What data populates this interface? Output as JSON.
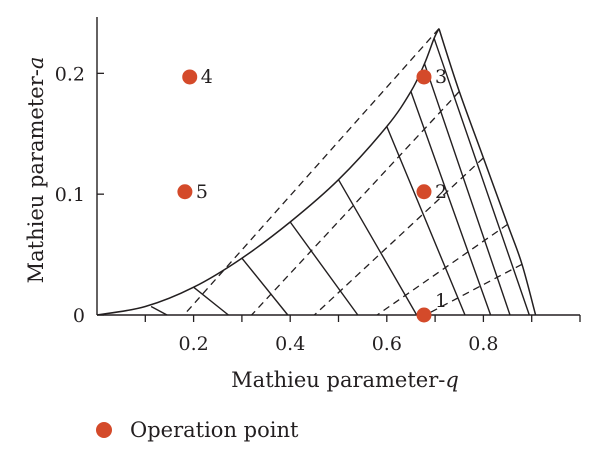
{
  "chart_data": {
    "type": "scatter",
    "title": "",
    "xlabel": "Mathieu parameter-",
    "xlabel_var": "q",
    "ylabel": "Mathieu parameter-",
    "ylabel_var": "a",
    "xlim": [
      0,
      1.0
    ],
    "ylim": [
      0,
      0.24
    ],
    "x_ticks": [
      {
        "value": 0.2,
        "label": "0.2"
      },
      {
        "value": 0.4,
        "label": "0.4"
      },
      {
        "value": 0.6,
        "label": "0.6"
      },
      {
        "value": 0.8,
        "label": "0.8"
      }
    ],
    "x_minor_ticks": [
      0.1,
      0.3,
      0.5,
      0.7,
      0.9,
      1.0
    ],
    "y_ticks": [
      {
        "value": 0,
        "label": "0"
      },
      {
        "value": 0.1,
        "label": "0.1"
      },
      {
        "value": 0.2,
        "label": "0.2"
      }
    ],
    "grid": false,
    "stability_boundary": {
      "color": "#231f20",
      "left_edge": [
        [
          0.0,
          0.0
        ],
        [
          0.1,
          0.007
        ],
        [
          0.2,
          0.023
        ],
        [
          0.3,
          0.047
        ],
        [
          0.4,
          0.077
        ],
        [
          0.5,
          0.112
        ],
        [
          0.6,
          0.156
        ],
        [
          0.65,
          0.185
        ],
        [
          0.678,
          0.208
        ],
        [
          0.698,
          0.229
        ],
        [
          0.708,
          0.237
        ]
      ],
      "right_edge": [
        [
          0.708,
          0.237
        ],
        [
          0.75,
          0.185
        ],
        [
          0.8,
          0.13
        ],
        [
          0.85,
          0.075
        ],
        [
          0.88,
          0.042
        ],
        [
          0.908,
          0.0
        ]
      ]
    },
    "iso_beta_solid": [
      [
        [
          0.112,
          0.007
        ],
        [
          0.145,
          0.0
        ]
      ],
      [
        [
          0.2,
          0.023
        ],
        [
          0.272,
          0.0
        ]
      ],
      [
        [
          0.3,
          0.047
        ],
        [
          0.395,
          0.0
        ]
      ],
      [
        [
          0.4,
          0.077
        ],
        [
          0.54,
          0.0
        ]
      ],
      [
        [
          0.5,
          0.112
        ],
        [
          0.662,
          0.0
        ]
      ],
      [
        [
          0.6,
          0.156
        ],
        [
          0.762,
          0.0
        ]
      ],
      [
        [
          0.65,
          0.185
        ],
        [
          0.815,
          0.0
        ]
      ],
      [
        [
          0.678,
          0.208
        ],
        [
          0.855,
          0.0
        ]
      ],
      [
        [
          0.698,
          0.229
        ],
        [
          0.895,
          0.0
        ]
      ]
    ],
    "iso_beta_dashed": [
      [
        [
          0.708,
          0.237
        ],
        [
          0.18,
          0.0
        ]
      ],
      [
        [
          0.75,
          0.185
        ],
        [
          0.32,
          0.0
        ]
      ],
      [
        [
          0.8,
          0.13
        ],
        [
          0.45,
          0.0
        ]
      ],
      [
        [
          0.85,
          0.075
        ],
        [
          0.58,
          0.0
        ]
      ],
      [
        [
          0.88,
          0.042
        ],
        [
          0.68,
          0.0
        ]
      ]
    ],
    "operation_points": [
      {
        "label": "1",
        "x": 0.677,
        "y": 0.0
      },
      {
        "label": "2",
        "x": 0.677,
        "y": 0.102
      },
      {
        "label": "3",
        "x": 0.677,
        "y": 0.197
      },
      {
        "label": "4",
        "x": 0.192,
        "y": 0.197
      },
      {
        "label": "5",
        "x": 0.182,
        "y": 0.102
      }
    ],
    "point_color": "#d44a2a",
    "legend": {
      "placement": "bottom-left",
      "label": "Operation point"
    }
  }
}
